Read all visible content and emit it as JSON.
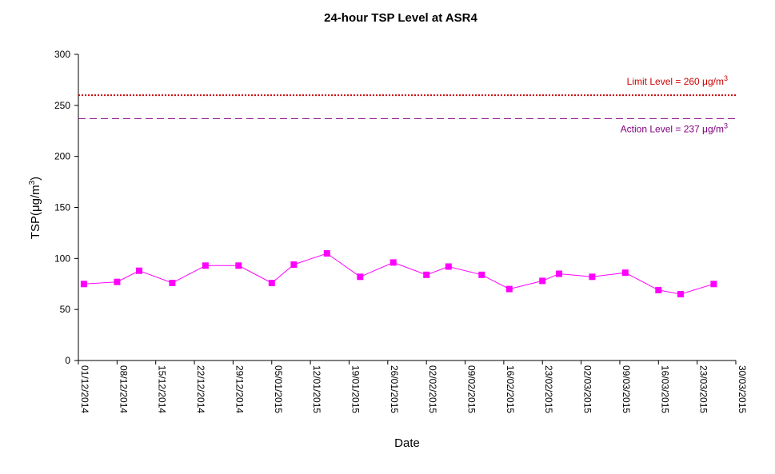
{
  "chart_data": {
    "type": "line",
    "title": "24-hour TSP Level at ASR4",
    "xlabel": "Date",
    "ylabel_prefix": "TSP(",
    "ylabel_unit_base": "μg/m",
    "ylabel_unit_sup": "3",
    "ylabel_suffix": ")",
    "ylim": [
      0,
      300
    ],
    "yticks": [
      0,
      50,
      100,
      150,
      200,
      250,
      300
    ],
    "x_range": [
      "2014-12-01",
      "2015-03-30"
    ],
    "xticks": [
      "01/12/2014",
      "08/12/2014",
      "15/12/2014",
      "22/12/2014",
      "29/12/2014",
      "05/01/2015",
      "12/01/2015",
      "19/01/2015",
      "26/01/2015",
      "02/02/2015",
      "09/02/2015",
      "16/02/2015",
      "23/02/2015",
      "02/03/2015",
      "09/03/2015",
      "16/03/2015",
      "23/03/2015",
      "30/03/2015"
    ],
    "grid": false,
    "series": [
      {
        "color": "#ff00ff",
        "marker": "square",
        "points": [
          {
            "x": "2014-12-02",
            "y": 75
          },
          {
            "x": "2014-12-08",
            "y": 77
          },
          {
            "x": "2014-12-12",
            "y": 88
          },
          {
            "x": "2014-12-18",
            "y": 76
          },
          {
            "x": "2014-12-24",
            "y": 93
          },
          {
            "x": "2014-12-30",
            "y": 93
          },
          {
            "x": "2015-01-05",
            "y": 76
          },
          {
            "x": "2015-01-09",
            "y": 94
          },
          {
            "x": "2015-01-15",
            "y": 105
          },
          {
            "x": "2015-01-21",
            "y": 82
          },
          {
            "x": "2015-01-27",
            "y": 96
          },
          {
            "x": "2015-02-02",
            "y": 84
          },
          {
            "x": "2015-02-06",
            "y": 92
          },
          {
            "x": "2015-02-12",
            "y": 84
          },
          {
            "x": "2015-02-17",
            "y": 70
          },
          {
            "x": "2015-02-23",
            "y": 78
          },
          {
            "x": "2015-02-26",
            "y": 85
          },
          {
            "x": "2015-03-04",
            "y": 82
          },
          {
            "x": "2015-03-10",
            "y": 86
          },
          {
            "x": "2015-03-16",
            "y": 69
          },
          {
            "x": "2015-03-20",
            "y": 65
          },
          {
            "x": "2015-03-26",
            "y": 75
          }
        ]
      }
    ],
    "reference_lines": [
      {
        "value": 260,
        "label_base": "Limit Level  = 260 μg/m",
        "label_sup": "3",
        "color": "#cc0000",
        "style": "dotted"
      },
      {
        "value": 237,
        "label_base": "Action Level  = 237 μg/m",
        "label_sup": "3",
        "color": "#800080",
        "style": "dashed"
      }
    ]
  }
}
